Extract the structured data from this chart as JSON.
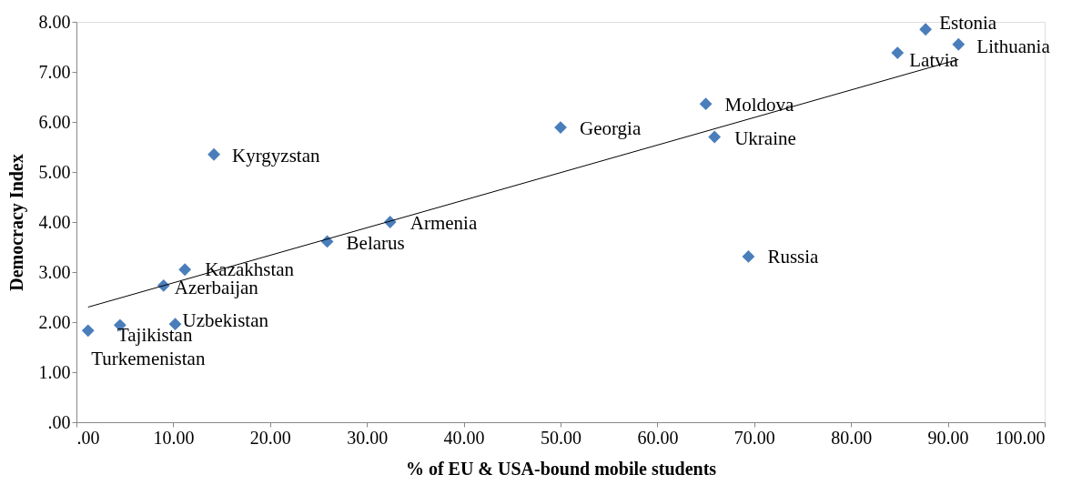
{
  "chart_data": {
    "type": "scatter",
    "xlabel": "% of EU & USA-bound mobile students",
    "ylabel": "Democracy Index",
    "grid": false,
    "xlim": [
      0,
      100
    ],
    "ylim": [
      0,
      8
    ],
    "xticks": [
      {
        "value": 0,
        "label": ".00"
      },
      {
        "value": 10,
        "label": "10.00"
      },
      {
        "value": 20,
        "label": "20.00"
      },
      {
        "value": 30,
        "label": "30.00"
      },
      {
        "value": 40,
        "label": "40.00"
      },
      {
        "value": 50,
        "label": "50.00"
      },
      {
        "value": 60,
        "label": "60.00"
      },
      {
        "value": 70,
        "label": "70.00"
      },
      {
        "value": 80,
        "label": "80.00"
      },
      {
        "value": 90,
        "label": "90.00"
      },
      {
        "value": 100,
        "label": "100.00"
      }
    ],
    "yticks": [
      {
        "value": 0,
        "label": ".00"
      },
      {
        "value": 1,
        "label": "1.00"
      },
      {
        "value": 2,
        "label": "2.00"
      },
      {
        "value": 3,
        "label": "3.00"
      },
      {
        "value": 4,
        "label": "4.00"
      },
      {
        "value": 5,
        "label": "5.00"
      },
      {
        "value": 6,
        "label": "6.00"
      },
      {
        "value": 7,
        "label": "7.00"
      },
      {
        "value": 8,
        "label": "8.00"
      }
    ],
    "series": [
      {
        "marker": "diamond",
        "color": "#4a7ebb",
        "x": [
          1.2,
          4.5,
          10.2,
          9.0,
          11.2,
          14.2,
          25.9,
          32.4,
          50.0,
          65.0,
          65.9,
          69.4,
          84.8,
          87.7,
          91.1
        ],
        "values": [
          1.83,
          1.94,
          1.96,
          2.73,
          3.05,
          5.35,
          3.61,
          4.0,
          5.89,
          6.36,
          5.7,
          3.31,
          7.38,
          7.85,
          7.55
        ]
      },
      {
        "type": "line",
        "marker": "none",
        "line_style": "solid",
        "color": "#000000",
        "x": [
          1.2,
          91.1
        ],
        "values": [
          2.3,
          7.25
        ]
      }
    ],
    "annotations": [
      {
        "text": "Turkemenistan",
        "x": 1.2,
        "y": 1.83
      },
      {
        "text": "Tajikistan",
        "x": 4.5,
        "y": 1.94
      },
      {
        "text": "Uzbekistan",
        "x": 10.2,
        "y": 1.96
      },
      {
        "text": "Azerbaijan",
        "x": 9.0,
        "y": 2.73
      },
      {
        "text": "Kazakhstan",
        "x": 11.2,
        "y": 3.05
      },
      {
        "text": "Kyrgyzstan",
        "x": 14.2,
        "y": 5.35
      },
      {
        "text": "Belarus",
        "x": 25.9,
        "y": 3.61
      },
      {
        "text": "Armenia",
        "x": 32.4,
        "y": 4.0
      },
      {
        "text": "Georgia",
        "x": 50.0,
        "y": 5.89
      },
      {
        "text": "Moldova",
        "x": 65.0,
        "y": 6.36
      },
      {
        "text": "Ukraine",
        "x": 65.9,
        "y": 5.7
      },
      {
        "text": "Russia",
        "x": 69.4,
        "y": 3.31
      },
      {
        "text": "Latvia",
        "x": 84.8,
        "y": 7.38
      },
      {
        "text": "Estonia",
        "x": 87.7,
        "y": 7.85
      },
      {
        "text": "Lithuania",
        "x": 91.1,
        "y": 7.55
      }
    ]
  }
}
